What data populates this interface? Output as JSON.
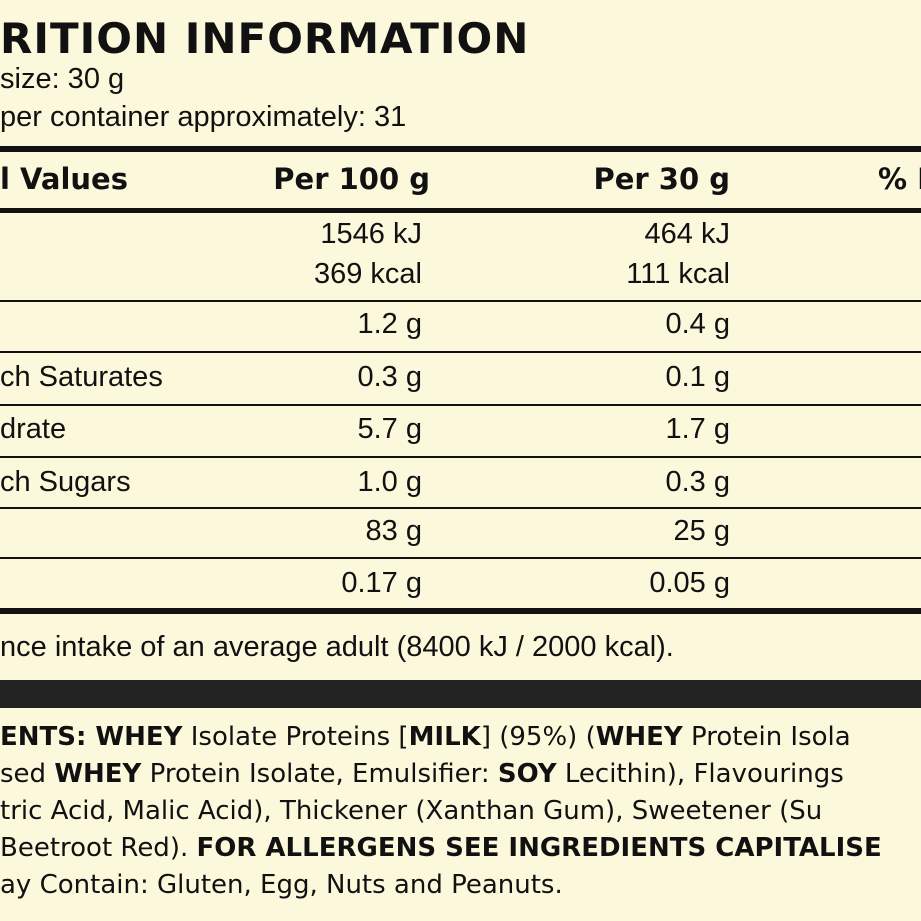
{
  "header": {
    "title": "RITION INFORMATION",
    "serving": "size: 30 g",
    "servings_per_container": "per container approximately: 31"
  },
  "table": {
    "columns": [
      "l Values",
      "Per 100 g",
      "Per 30 g",
      "% I"
    ],
    "rows": [
      {
        "per100": [
          "1546 kJ",
          "369 kcal"
        ],
        "per30": [
          "464 kJ",
          "111 kcal"
        ]
      },
      {
        "per100": [
          "1.2 g"
        ],
        "per30": [
          "0.4 g"
        ]
      },
      {
        "label": "ch Saturates",
        "per100": [
          "0.3 g"
        ],
        "per30": [
          "0.1 g"
        ]
      },
      {
        "label": "drate",
        "per100": [
          "5.7 g"
        ],
        "per30": [
          "1.7 g"
        ]
      },
      {
        "label": "ch Sugars",
        "per100": [
          "1.0 g"
        ],
        "per30": [
          "0.3 g"
        ]
      },
      {
        "per100": [
          "83 g"
        ],
        "per30": [
          "25 g"
        ]
      },
      {
        "per100": [
          "0.17 g"
        ],
        "per30": [
          "0.05 g"
        ]
      }
    ],
    "footnote": "nce intake of an average adult (8400 kJ / 2000 kcal)."
  },
  "ingredients": [
    [
      {
        "text": "ENTS: WHEY",
        "bold": true
      },
      {
        "text": " Isolate Proteins ["
      },
      {
        "text": "MILK",
        "bold": true
      },
      {
        "text": "] (95%) ("
      },
      {
        "text": "WHEY",
        "bold": true
      },
      {
        "text": " Protein Isola"
      }
    ],
    [
      {
        "text": "sed "
      },
      {
        "text": "WHEY",
        "bold": true
      },
      {
        "text": " Protein Isolate, Emulsifier: "
      },
      {
        "text": "SOY",
        "bold": true
      },
      {
        "text": " Lecithin), Flavourings"
      }
    ],
    [
      {
        "text": "tric Acid, Malic Acid), Thickener (Xanthan Gum), Sweetener (Su"
      }
    ],
    [
      {
        "text": "Beetroot Red). "
      },
      {
        "text": "FOR ALLERGENS SEE INGREDIENTS CAPITALISE",
        "bold": true
      }
    ],
    [
      {
        "text": "ay Contain: Gluten, Egg, Nuts and Peanuts."
      }
    ]
  ]
}
